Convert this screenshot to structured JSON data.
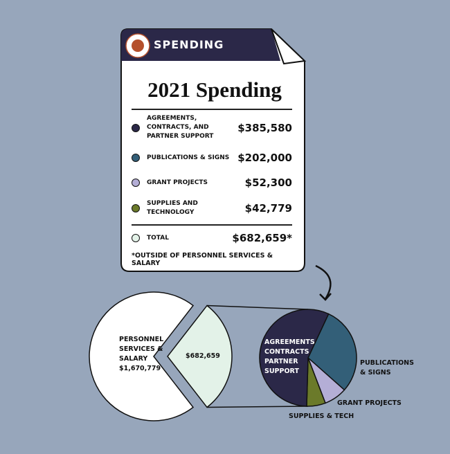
{
  "card": {
    "header": "SPENDING",
    "title": "2021 Spending",
    "items": [
      {
        "name": "AGREEMENTS, CONTRACTS, AND PARTNER SUPPORT",
        "value": 385580,
        "label": "$385,580",
        "color": "#2b2848"
      },
      {
        "name": "PUBLICATIONS & SIGNS",
        "value": 202000,
        "label": "$202,000",
        "color": "#335f78"
      },
      {
        "name": "GRANT PROJECTS",
        "value": 52300,
        "label": "$52,300",
        "color": "#b4aed6"
      },
      {
        "name": "SUPPLIES AND TECHNOLOGY",
        "value": 42779,
        "label": "$42,779",
        "color": "#6b7a2a"
      }
    ],
    "total": {
      "name": "TOTAL",
      "value": 682659,
      "label": "$682,659*",
      "color": "#e3f2e8"
    },
    "footnote": "*OUTSIDE OF PERSONNEL SERVICES & SALARY"
  },
  "big_pie": {
    "personnel_name": "PERSONNEL SERVICES & SALARY",
    "personnel_value": 1670779,
    "personnel_label": "$1,670,779",
    "personnel_color": "#ffffff",
    "spending_label": "$682,659"
  },
  "small_pie": {
    "labels": [
      "AGREEMENTS CONTRACTS PARTNER SUPPORT",
      "PUBLICATIONS & SIGNS",
      "GRANT PROJECTS",
      "SUPPLIES & TECH"
    ]
  }
}
